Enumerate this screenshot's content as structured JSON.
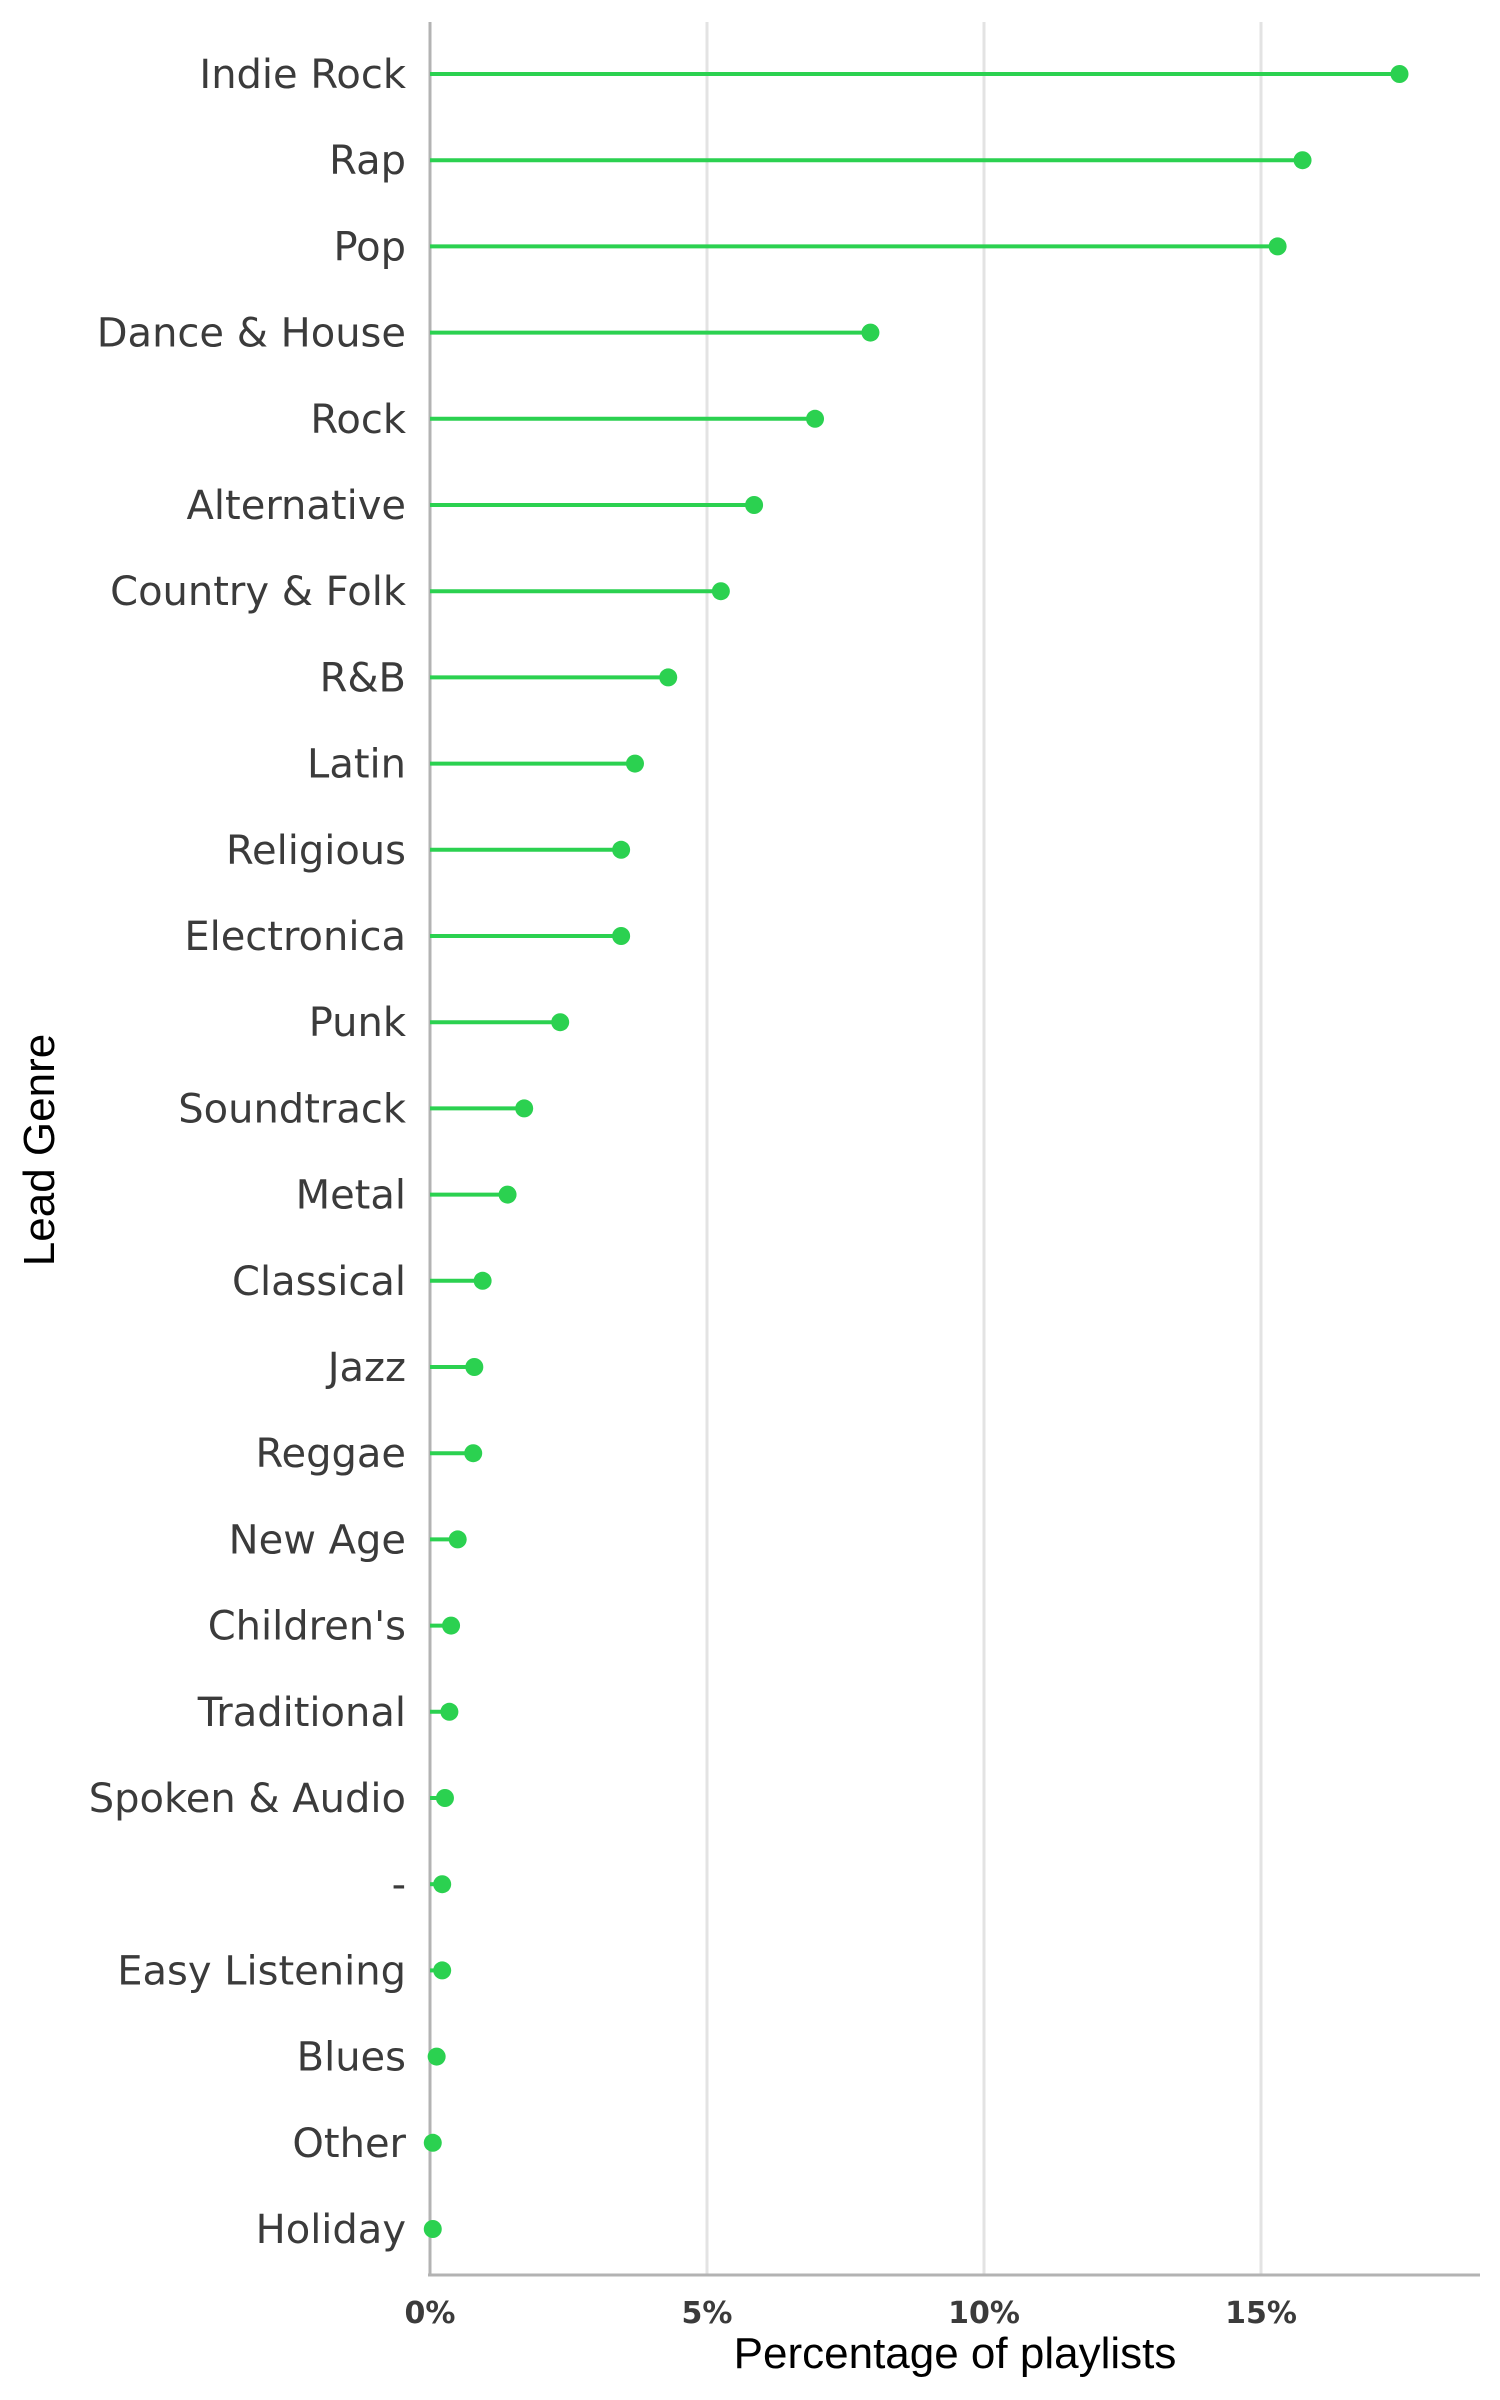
{
  "chart_data": {
    "type": "lollipop",
    "orientation": "horizontal",
    "title": "",
    "xlabel": "Percentage of playlists",
    "ylabel": "Lead Genre",
    "xlim": [
      0,
      19
    ],
    "x_ticks": [
      0,
      5,
      10,
      15
    ],
    "x_tick_labels": [
      "0%",
      "5%",
      "10%",
      "15%"
    ],
    "grid": "vertical major gridlines",
    "legend": "none",
    "color": "#2bd150",
    "categories": [
      "Indie Rock",
      "Rap",
      "Pop",
      "Dance & House",
      "Rock",
      "Alternative",
      "Country & Folk",
      "R&B",
      "Latin",
      "Religious",
      "Electronica",
      "Punk",
      "Soundtrack",
      "Metal",
      "Classical",
      "Jazz",
      "Reggae",
      "New Age",
      "Children's",
      "Traditional",
      "Spoken & Audio",
      "-",
      "Easy Listening",
      "Blues",
      "Other",
      "Holiday"
    ],
    "values": [
      17.5,
      15.75,
      15.3,
      7.95,
      6.95,
      5.85,
      5.25,
      4.3,
      3.7,
      3.45,
      3.45,
      2.35,
      1.7,
      1.4,
      0.95,
      0.8,
      0.78,
      0.5,
      0.38,
      0.35,
      0.27,
      0.22,
      0.22,
      0.12,
      0.05,
      0.05
    ]
  }
}
